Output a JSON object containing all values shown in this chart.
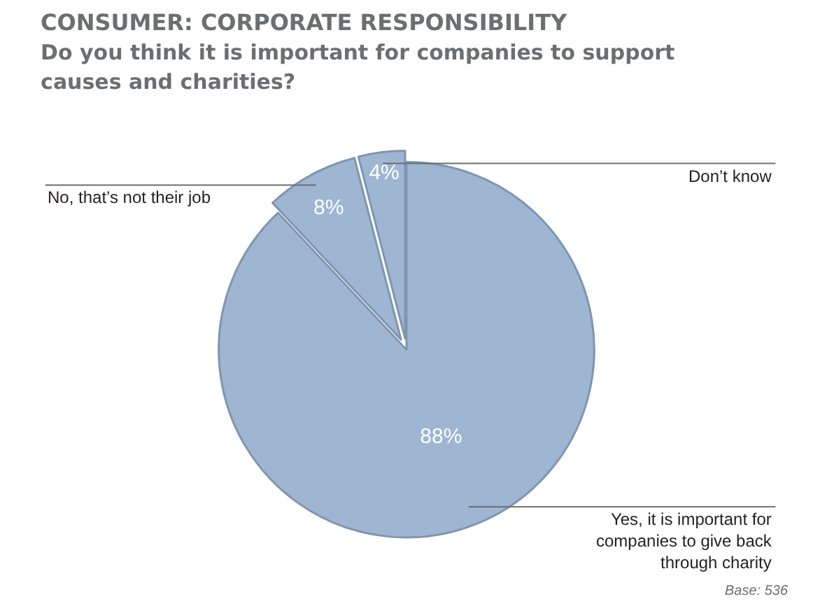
{
  "chart_data": {
    "type": "pie",
    "title": "CONSUMER: CORPORATE RESPONSIBILITY",
    "subtitle": "Do you think it is important for companies to support causes and charities?",
    "categories": [
      "Yes, it is important for companies to give back through charity",
      "No, that’s not their job",
      "Don’t know"
    ],
    "values": [
      88,
      8,
      4
    ],
    "value_labels": [
      "88%",
      "8%",
      "4%"
    ],
    "colors": [
      "#9fb6d3",
      "#9fb6d3",
      "#9fb6d3"
    ],
    "annotations": [
      "Base: 536"
    ],
    "legend": false
  }
}
